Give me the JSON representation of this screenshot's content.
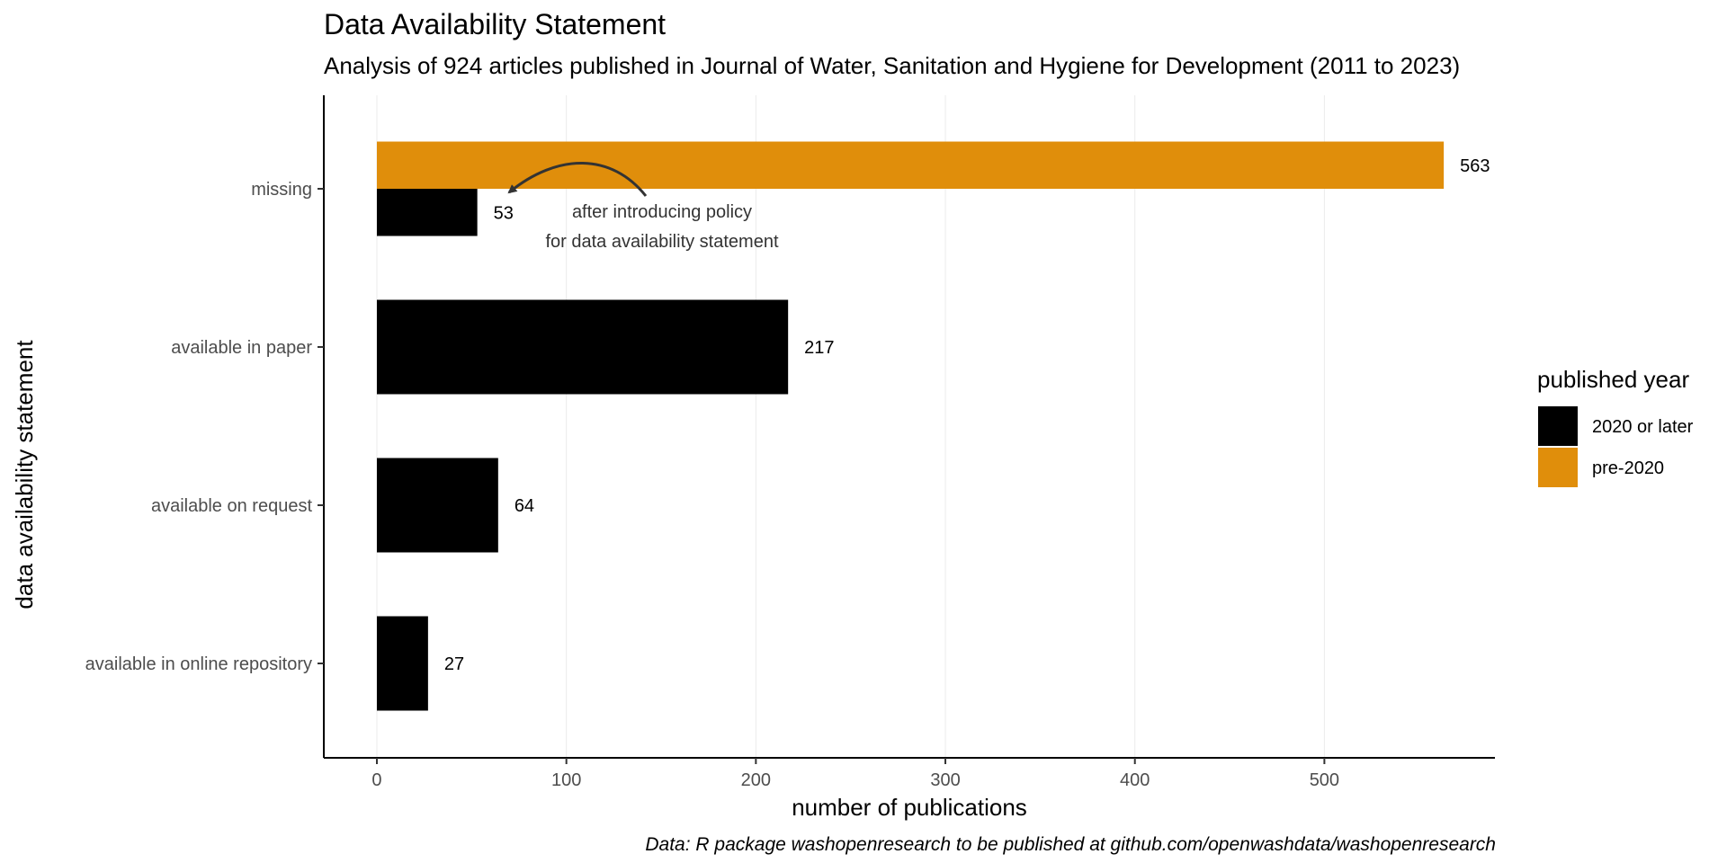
{
  "chart_data": {
    "type": "bar",
    "orientation": "horizontal",
    "title": "Data Availability Statement",
    "subtitle": "Analysis of 924 articles published in Journal of Water, Sanitation and Hygiene for Development (2011 to 2023)",
    "xlabel": "number of publications",
    "ylabel": "data availability statement",
    "xlim": [
      -28,
      590
    ],
    "x_ticks": [
      0,
      100,
      200,
      300,
      400,
      500
    ],
    "x_tick_labels": [
      "0",
      "100",
      "200",
      "300",
      "400",
      "500"
    ],
    "grid": true,
    "categories": [
      "missing",
      "available in paper",
      "available on request",
      "available in online repository"
    ],
    "series": [
      {
        "name": "2020 or later",
        "color": "#000000",
        "values": [
          53,
          217,
          64,
          27
        ]
      },
      {
        "name": "pre-2020",
        "color": "#E08E0B",
        "values": [
          563,
          null,
          null,
          null
        ]
      }
    ],
    "data_labels": [
      {
        "category": "missing",
        "series": "2020 or later",
        "text": "53"
      },
      {
        "category": "missing",
        "series": "pre-2020",
        "text": "563"
      },
      {
        "category": "available in paper",
        "series": "2020 or later",
        "text": "217"
      },
      {
        "category": "available on request",
        "series": "2020 or later",
        "text": "64"
      },
      {
        "category": "available in online repository",
        "series": "2020 or later",
        "text": "27"
      }
    ],
    "annotation": {
      "lines": [
        "after introducing policy",
        "for data availability statement"
      ],
      "arrow_to": {
        "category": "missing",
        "series": "2020 or later"
      }
    },
    "legend": {
      "title": "published year",
      "position": "right",
      "entries": [
        {
          "label": "2020 or later",
          "color": "#000000"
        },
        {
          "label": "pre-2020",
          "color": "#E08E0B"
        }
      ]
    },
    "caption": "Data: R package washopenresearch to be published at github.com/openwashdata/washopenresearch"
  }
}
